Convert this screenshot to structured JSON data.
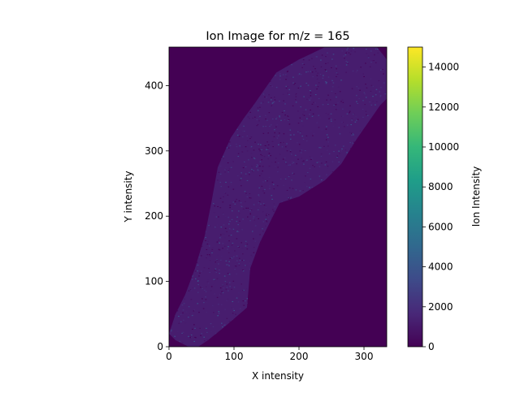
{
  "chart_data": {
    "type": "heatmap",
    "title": "Ion Image for m/z = 165",
    "xlabel": "X intensity",
    "ylabel": "Y intensity",
    "xlim": [
      0,
      335
    ],
    "ylim": [
      0,
      459
    ],
    "xticks": [
      0,
      100,
      200,
      300
    ],
    "yticks": [
      0,
      100,
      200,
      300,
      400
    ],
    "colorbar": {
      "label": "Ion Intensity",
      "range": [
        0,
        15000
      ],
      "ticks": [
        0,
        2000,
        4000,
        6000,
        8000,
        10000,
        12000,
        14000
      ],
      "colormap": "viridis"
    },
    "background_value": 0,
    "typical_signal_range": [
      0,
      4000
    ],
    "sample_region_outline": [
      [
        0,
        20
      ],
      [
        10,
        10
      ],
      [
        30,
        0
      ],
      [
        45,
        0
      ],
      [
        60,
        10
      ],
      [
        85,
        30
      ],
      [
        120,
        60
      ],
      [
        125,
        120
      ],
      [
        140,
        160
      ],
      [
        170,
        220
      ],
      [
        200,
        230
      ],
      [
        240,
        255
      ],
      [
        265,
        280
      ],
      [
        290,
        320
      ],
      [
        325,
        370
      ],
      [
        335,
        380
      ],
      [
        335,
        440
      ],
      [
        320,
        459
      ],
      [
        240,
        459
      ],
      [
        200,
        440
      ],
      [
        165,
        420
      ],
      [
        130,
        370
      ],
      [
        115,
        350
      ],
      [
        95,
        320
      ],
      [
        75,
        275
      ],
      [
        65,
        220
      ],
      [
        55,
        170
      ],
      [
        40,
        120
      ],
      [
        25,
        80
      ],
      [
        10,
        50
      ]
    ],
    "grid": false
  },
  "colors": {
    "viridis": [
      "#440154",
      "#482878",
      "#3e4a89",
      "#31688e",
      "#26828e",
      "#1f9e89",
      "#35b779",
      "#6ece58",
      "#b5de2b",
      "#fde725"
    ],
    "background": "#440154"
  }
}
